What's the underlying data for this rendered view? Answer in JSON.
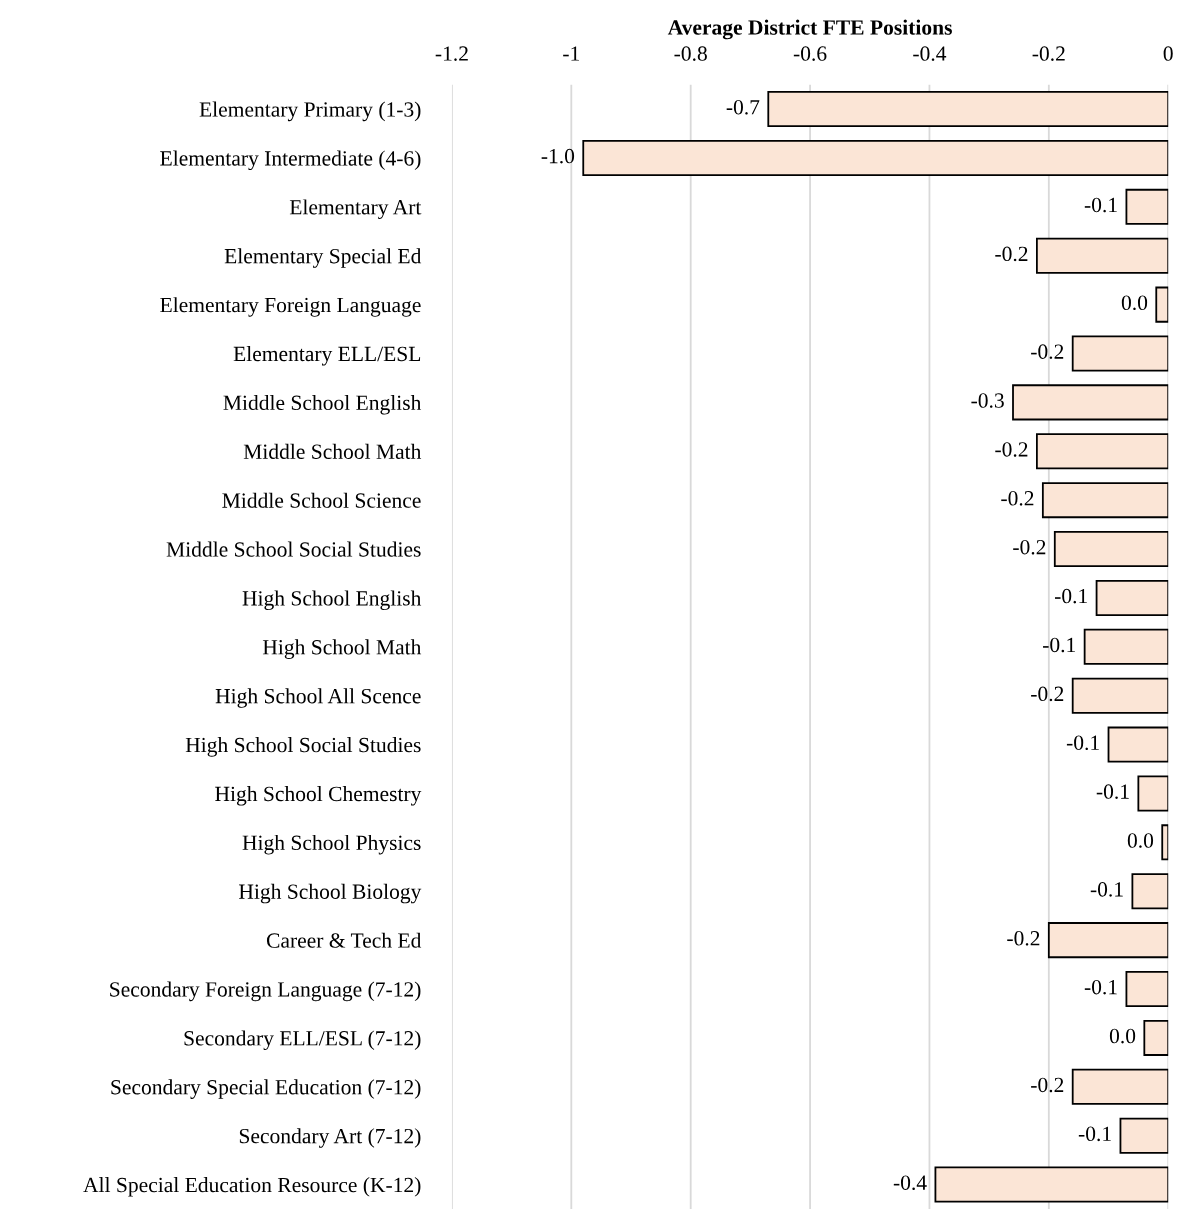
{
  "chart_data": {
    "type": "bar",
    "orientation": "horizontal",
    "xlabel": "Average District FTE Positions",
    "categories": [
      "Elementary Primary (1-3)",
      "Elementary Intermediate (4-6)",
      "Elementary Art",
      "Elementary Special Ed",
      "Elementary Foreign Language",
      "Elementary ELL/ESL",
      "Middle School English",
      "Middle School Math",
      "Middle School Science",
      "Middle School Social Studies",
      "High School English",
      "High School Math",
      "High School All Scence",
      "High School Social Studies",
      "High School Chemestry",
      "High School Physics",
      "High School Biology",
      "Career & Tech Ed",
      "Secondary Foreign Language (7-12)",
      "Secondary ELL/ESL (7-12)",
      "Secondary Special Education (7-12)",
      "Secondary Art (7-12)",
      "All Special Education Resource (K-12)"
    ],
    "values": [
      -0.67,
      -0.98,
      -0.07,
      -0.22,
      -0.02,
      -0.16,
      -0.26,
      -0.22,
      -0.21,
      -0.19,
      -0.12,
      -0.14,
      -0.16,
      -0.1,
      -0.05,
      -0.01,
      -0.06,
      -0.2,
      -0.07,
      -0.04,
      -0.16,
      -0.08,
      -0.39
    ],
    "value_labels": [
      "-0.7",
      "-1.0",
      "-0.1",
      "-0.2",
      "0.0",
      "-0.2",
      "-0.3",
      "-0.2",
      "-0.2",
      "-0.2",
      "-0.1",
      "-0.1",
      "-0.2",
      "-0.1",
      "-0.1",
      "0.0",
      "-0.1",
      "-0.2",
      "-0.1",
      "0.0",
      "-0.2",
      "-0.1",
      "-0.4"
    ],
    "color": "#fbe5d6",
    "xlim": [
      -1.2,
      0
    ],
    "xticks": [
      -1.2,
      -1,
      -0.8,
      -0.6,
      -0.4,
      -0.2,
      0
    ],
    "grid": "x",
    "legend": false
  }
}
